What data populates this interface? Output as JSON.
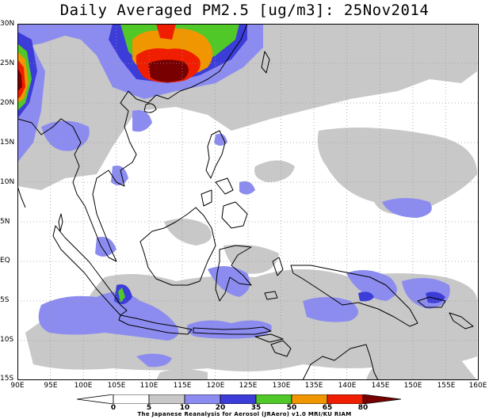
{
  "title": "Daily Averaged PM2.5 [ug/m3]: 25Nov2014",
  "lat_labels": [
    "30N",
    "25N",
    "20N",
    "15N",
    "10N",
    "5N",
    "EQ",
    "5S",
    "10S",
    "15S"
  ],
  "lon_labels": [
    "90E",
    "95E",
    "100E",
    "105E",
    "110E",
    "115E",
    "120E",
    "125E",
    "130E",
    "135E",
    "140E",
    "145E",
    "150E",
    "155E",
    "160E"
  ],
  "colorbar": {
    "levels": [
      "0",
      "5",
      "10",
      "20",
      "35",
      "50",
      "65",
      "80"
    ],
    "colors": [
      "#ffffff",
      "#ffffff",
      "#c8c8c8",
      "#8c8cf0",
      "#3c3cd8",
      "#50c828",
      "#f09600",
      "#f01e00",
      "#780000"
    ]
  },
  "credit": "The Japanese Reanalysis for Aerosol (JRAero) v1.0 MRI/KU RIAM"
}
